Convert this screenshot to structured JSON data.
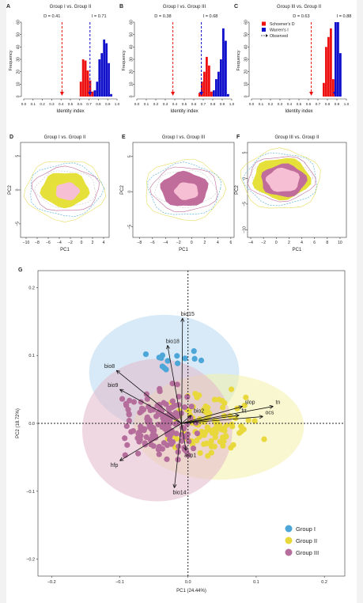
{
  "chart_data": [
    {
      "id": "A",
      "type": "bar",
      "panel_label": "A",
      "title": "Group I vs. Group II",
      "xlabel": "Identity index",
      "ylabel": "Frequency",
      "xlim": [
        0,
        1
      ],
      "ylim": [
        0,
        60
      ],
      "xticks": [
        "0.0",
        "0.1",
        "0.2",
        "0.3",
        "0.4",
        "0.5",
        "0.6",
        "0.7",
        "0.8",
        "0.9",
        "1.0"
      ],
      "yticks": [
        "0",
        "10",
        "20",
        "30",
        "40",
        "50",
        "60"
      ],
      "bin_width": 0.025,
      "series": [
        {
          "name": "Schoener's D",
          "color": "#ee1111",
          "bins": [
            0.6,
            0.625,
            0.65,
            0.675,
            0.7,
            0.725
          ],
          "values": [
            12,
            30,
            29,
            21,
            13,
            4
          ]
        },
        {
          "name": "Warren's I",
          "color": "#1111cc",
          "bins": [
            0.75,
            0.775,
            0.8,
            0.825,
            0.85,
            0.875,
            0.9,
            0.925
          ],
          "values": [
            5,
            12,
            30,
            35,
            46,
            43,
            27,
            2
          ]
        }
      ],
      "observed": [
        {
          "label": "D = 0.41",
          "x": 0.41,
          "color": "#ee1111"
        },
        {
          "label": "I = 0.71",
          "x": 0.71,
          "color": "#1111cc"
        }
      ]
    },
    {
      "id": "B",
      "type": "bar",
      "panel_label": "B",
      "title": "Group I vs. Group III",
      "xlabel": "Identity index",
      "ylabel": "Frequency",
      "xlim": [
        0,
        1
      ],
      "ylim": [
        0,
        60
      ],
      "xticks": [
        "0.0",
        "0.1",
        "0.2",
        "0.3",
        "0.4",
        "0.5",
        "0.6",
        "0.7",
        "0.8",
        "0.9",
        "1.0"
      ],
      "yticks": [
        "0",
        "10",
        "20",
        "30",
        "40",
        "50",
        "60"
      ],
      "bin_width": 0.025,
      "series": [
        {
          "name": "Schoener's D",
          "color": "#ee1111",
          "bins": [
            0.65,
            0.675,
            0.7,
            0.725,
            0.75,
            0.775
          ],
          "values": [
            3,
            12,
            20,
            32,
            25,
            4
          ]
        },
        {
          "name": "Warren's I",
          "color": "#1111cc",
          "bins": [
            0.8,
            0.825,
            0.85,
            0.875,
            0.9,
            0.925,
            0.95
          ],
          "values": [
            5,
            14,
            20,
            30,
            55,
            45,
            2
          ]
        }
      ],
      "observed": [
        {
          "label": "D = 0.38",
          "x": 0.38,
          "color": "#ee1111"
        },
        {
          "label": "I = 0.68",
          "x": 0.68,
          "color": "#1111cc"
        }
      ]
    },
    {
      "id": "C",
      "type": "bar",
      "panel_label": "C",
      "title": "Group III vs. Group II",
      "xlabel": "Identity index",
      "ylabel": "Frequency",
      "xlim": [
        0,
        1
      ],
      "ylim": [
        0,
        60
      ],
      "xticks": [
        "0.0",
        "0.1",
        "0.2",
        "0.3",
        "0.4",
        "0.5",
        "0.6",
        "0.7",
        "0.8",
        "0.9",
        "1.0"
      ],
      "yticks": [
        "0",
        "10",
        "20",
        "30",
        "40",
        "50",
        "60"
      ],
      "bin_width": 0.025,
      "series": [
        {
          "name": "Schoener's D",
          "color": "#ee1111",
          "bins": [
            0.75,
            0.775,
            0.8,
            0.825,
            0.85
          ],
          "values": [
            11,
            40,
            48,
            55,
            14
          ]
        },
        {
          "name": "Warren's I",
          "color": "#1111cc",
          "bins": [
            0.875,
            0.9,
            0.925
          ],
          "values": [
            62,
            60,
            35
          ]
        }
      ],
      "observed": [
        {
          "label": "D = 0.63",
          "x": 0.63,
          "color": "#ee1111"
        },
        {
          "label": "I = 0.88",
          "x": 0.88,
          "color": "#1111cc"
        }
      ],
      "legend": {
        "placement": "top-right",
        "items": [
          {
            "label": "Schoener's D",
            "kind": "box",
            "color": "#ee1111"
          },
          {
            "label": "Warren's I",
            "kind": "box",
            "color": "#1111cc"
          },
          {
            "label": "Observed",
            "kind": "arrow",
            "color": "#222222"
          }
        ]
      }
    },
    {
      "id": "D",
      "type": "area",
      "panel_label": "D",
      "title": "Group I vs. Group II",
      "xlabel": "PC1",
      "ylabel": "PC2",
      "xlim": [
        -11,
        5
      ],
      "ylim": [
        -7,
        7
      ],
      "xticks": [
        "−10",
        "−8",
        "−6",
        "−4",
        "−2",
        "0",
        "2",
        "4"
      ],
      "yticks": [
        "−5",
        "0",
        "5"
      ],
      "fills": [
        "#e5e03a",
        "#f7bfd4"
      ]
    },
    {
      "id": "E",
      "type": "area",
      "panel_label": "E",
      "title": "Group I vs. Group III",
      "xlabel": "PC1",
      "ylabel": "PC2",
      "xlim": [
        -9,
        6.5
      ],
      "ylim": [
        -6.5,
        7
      ],
      "xticks": [
        "−8",
        "−6",
        "−4",
        "−2",
        "0",
        "2",
        "4",
        "6"
      ],
      "yticks": [
        "−5",
        "0",
        "5"
      ],
      "fills": [
        "#c06d9c",
        "#f7bfd4"
      ]
    },
    {
      "id": "F",
      "type": "area",
      "panel_label": "F",
      "title": "Group III vs. Group II",
      "xlabel": "PC1",
      "ylabel": "PC2",
      "xlim": [
        -4.5,
        11
      ],
      "ylim": [
        -11.5,
        7
      ],
      "xticks": [
        "−4",
        "−2",
        "0",
        "2",
        "4",
        "6",
        "8",
        "10"
      ],
      "yticks": [
        "−10",
        "−5",
        "0",
        "5"
      ],
      "fills": [
        "#e5e03a",
        "#c06d9c",
        "#f7bfd4"
      ]
    },
    {
      "id": "G",
      "type": "scatter",
      "panel_label": "G",
      "xlabel": "PC1 (24.44%)",
      "ylabel": "PC2 (18.72%)",
      "xlim": [
        -0.22,
        0.23
      ],
      "ylim": [
        -0.225,
        0.225
      ],
      "xticks": [
        -0.2,
        -0.1,
        0.0,
        0.1,
        0.2
      ],
      "yticks": [
        -0.2,
        -0.1,
        0.0,
        0.1,
        0.2
      ],
      "tick_labels_x": [
        "−0.2",
        "−0.1",
        "0.0",
        "0.1",
        "0.2"
      ],
      "tick_labels_y": [
        "−0.2",
        "−0.1",
        "0.0",
        "0.1",
        "0.2"
      ],
      "series": [
        {
          "name": "Group I",
          "color": "#4da6d8"
        },
        {
          "name": "Group II",
          "color": "#e8d83c"
        },
        {
          "name": "Group III",
          "color": "#b56d9c"
        }
      ],
      "ellipses": [
        {
          "group": "Group I",
          "cx": -0.035,
          "cy": 0.075,
          "rx": 0.11,
          "ry": 0.085,
          "color": "#b8d8f0"
        },
        {
          "group": "Group II",
          "cx": 0.045,
          "cy": -0.005,
          "rx": 0.125,
          "ry": 0.078,
          "color": "#f4f0a8"
        },
        {
          "group": "Group III",
          "cx": -0.045,
          "cy": -0.01,
          "rx": 0.11,
          "ry": 0.105,
          "color": "#e4b8cc"
        }
      ],
      "loadings": [
        {
          "label": "bio15",
          "x": -0.008,
          "y": 0.155
        },
        {
          "label": "bio18",
          "x": -0.03,
          "y": 0.115
        },
        {
          "label": "bio8",
          "x": -0.105,
          "y": 0.078
        },
        {
          "label": "bio9",
          "x": -0.1,
          "y": 0.05
        },
        {
          "label": "slop",
          "x": 0.08,
          "y": 0.025
        },
        {
          "label": "tn",
          "x": 0.125,
          "y": 0.025
        },
        {
          "label": "frt",
          "x": 0.075,
          "y": 0.012
        },
        {
          "label": "ocs",
          "x": 0.11,
          "y": 0.01
        },
        {
          "label": "bio2",
          "x": 0.005,
          "y": 0.012
        },
        {
          "label": "asp1",
          "x": -0.003,
          "y": -0.04
        },
        {
          "label": "hfp",
          "x": -0.1,
          "y": -0.055
        },
        {
          "label": "bio14",
          "x": -0.02,
          "y": -0.095
        }
      ],
      "legend": {
        "placement": "bottom-right",
        "items": [
          "Group I",
          "Group II",
          "Group III"
        ]
      }
    }
  ]
}
